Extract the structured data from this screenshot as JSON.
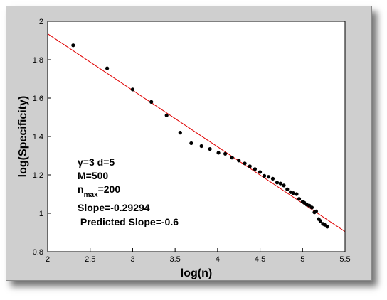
{
  "chart_data": {
    "type": "scatter",
    "xlabel": "log(n)",
    "ylabel": "log(Specificity)",
    "xlim": [
      2,
      5.5
    ],
    "ylim": [
      0.8,
      2
    ],
    "xticks": [
      "2",
      "2.5",
      "3",
      "3.5",
      "4",
      "4.5",
      "5",
      "5.5"
    ],
    "yticks": [
      "0.8",
      "1",
      "1.2",
      "1.4",
      "1.6",
      "1.8",
      "2"
    ],
    "grid": false,
    "colors": {
      "points": "#000000",
      "fit_line": "#e00000",
      "plot_bg": "#ffffff",
      "panel_bg": "#cfcfcf"
    },
    "fit_line": {
      "x": [
        2,
        5.5
      ],
      "y": [
        1.935,
        0.905
      ]
    },
    "points": [
      {
        "x": 2.3,
        "y": 1.875
      },
      {
        "x": 2.7,
        "y": 1.755
      },
      {
        "x": 3.0,
        "y": 1.645
      },
      {
        "x": 3.22,
        "y": 1.58
      },
      {
        "x": 3.4,
        "y": 1.51
      },
      {
        "x": 3.56,
        "y": 1.42
      },
      {
        "x": 3.69,
        "y": 1.365
      },
      {
        "x": 3.81,
        "y": 1.35
      },
      {
        "x": 3.91,
        "y": 1.335
      },
      {
        "x": 4.01,
        "y": 1.315
      },
      {
        "x": 4.09,
        "y": 1.31
      },
      {
        "x": 4.17,
        "y": 1.29
      },
      {
        "x": 4.25,
        "y": 1.275
      },
      {
        "x": 4.32,
        "y": 1.26
      },
      {
        "x": 4.38,
        "y": 1.245
      },
      {
        "x": 4.44,
        "y": 1.23
      },
      {
        "x": 4.5,
        "y": 1.215
      },
      {
        "x": 4.55,
        "y": 1.195
      },
      {
        "x": 4.6,
        "y": 1.19
      },
      {
        "x": 4.65,
        "y": 1.18
      },
      {
        "x": 4.7,
        "y": 1.16
      },
      {
        "x": 4.74,
        "y": 1.155
      },
      {
        "x": 4.78,
        "y": 1.145
      },
      {
        "x": 4.82,
        "y": 1.125
      },
      {
        "x": 4.86,
        "y": 1.11
      },
      {
        "x": 4.89,
        "y": 1.105
      },
      {
        "x": 4.93,
        "y": 1.1
      },
      {
        "x": 4.96,
        "y": 1.075
      },
      {
        "x": 5.0,
        "y": 1.06
      },
      {
        "x": 5.02,
        "y": 1.055
      },
      {
        "x": 5.05,
        "y": 1.045
      },
      {
        "x": 5.08,
        "y": 1.04
      },
      {
        "x": 5.11,
        "y": 1.03
      },
      {
        "x": 5.14,
        "y": 1.005
      },
      {
        "x": 5.16,
        "y": 1.01
      },
      {
        "x": 5.19,
        "y": 0.97
      },
      {
        "x": 5.21,
        "y": 0.96
      },
      {
        "x": 5.24,
        "y": 0.945
      },
      {
        "x": 5.26,
        "y": 0.94
      },
      {
        "x": 5.29,
        "y": 0.93
      }
    ],
    "annotations": {
      "line1": "γ=3 d=5",
      "line2": "M=500",
      "nmax_base": "n",
      "nmax_sub": "max",
      "nmax_value": "=200",
      "slope": "Slope=-0.29294",
      "predicted_slope": " Predicted Slope=-0.6"
    }
  }
}
